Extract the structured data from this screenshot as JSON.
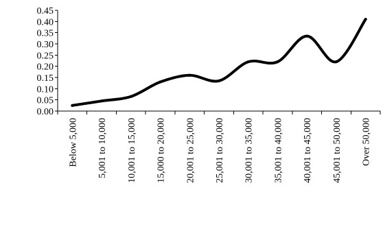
{
  "chart_data": {
    "type": "line",
    "title": "",
    "xlabel": "",
    "ylabel": "",
    "categories": [
      "Below 5,000",
      "5,001 to 10,000",
      "10,001 to 15,000",
      "15,000 to 20,000",
      "20,001 to 25,000",
      "25,001 to 30,000",
      "30,001 to 35,000",
      "35,001 to 40,000",
      "40,001 to 45,000",
      "45,001 to 50,000",
      "Over 50,000"
    ],
    "series": [
      {
        "values": [
          0.025,
          0.045,
          0.065,
          0.13,
          0.16,
          0.135,
          0.22,
          0.22,
          0.335,
          0.22,
          0.41
        ],
        "color": "#000000"
      }
    ],
    "ylim": [
      0,
      0.45
    ],
    "yticks": [
      "0.00",
      "0.05",
      "0.10",
      "0.15",
      "0.20",
      "0.25",
      "0.30",
      "0.35",
      "0.40",
      "0.45"
    ],
    "smooth": true,
    "grid": false,
    "legend": "none"
  }
}
